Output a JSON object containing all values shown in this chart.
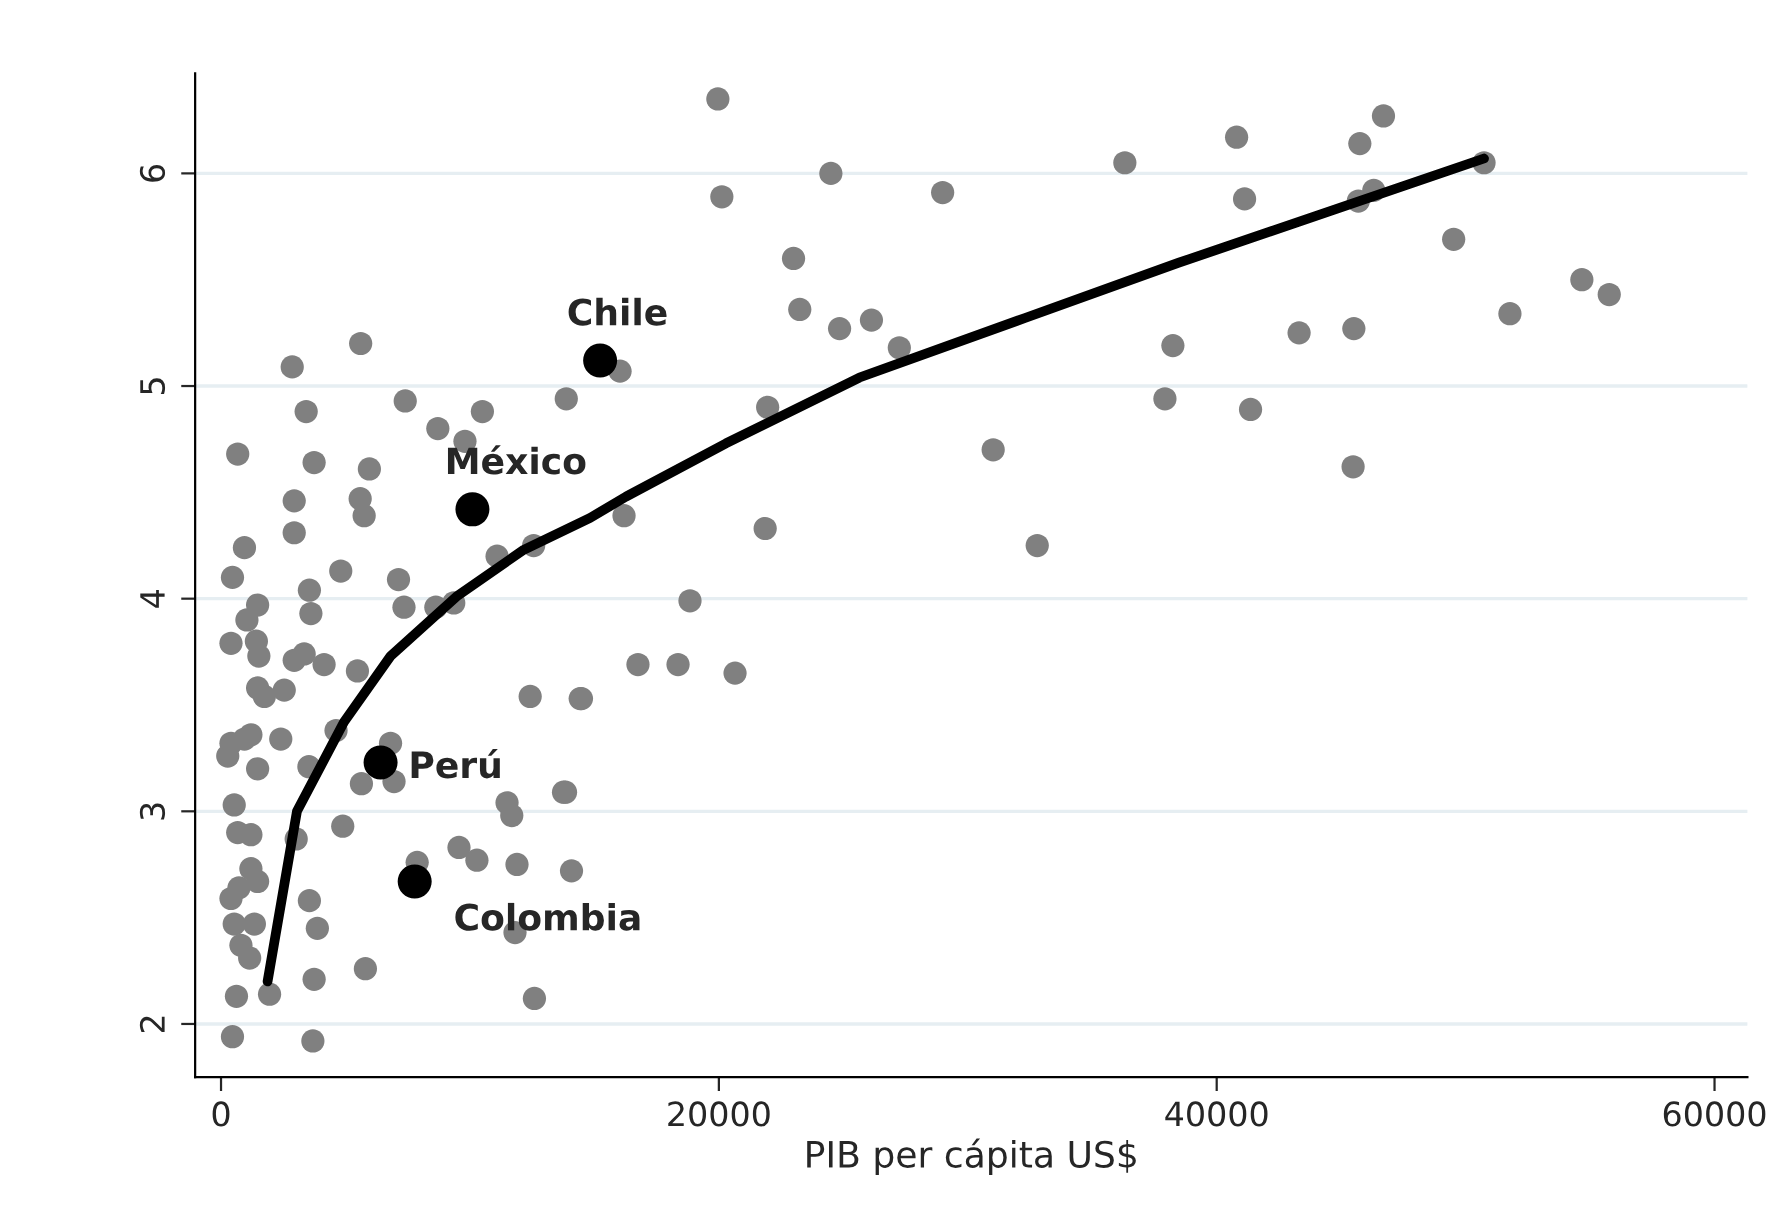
{
  "chart_data": {
    "type": "scatter",
    "xlabel": "PIB per cápita US$",
    "xlim": [
      -1040,
      61320
    ],
    "ylim": [
      1.75,
      6.47
    ],
    "xticks": [
      0,
      20000,
      40000,
      60000
    ],
    "yticks": [
      2,
      3,
      4,
      5,
      6
    ],
    "grid": "y",
    "marker": "circle",
    "legend": false,
    "series": [
      {
        "color": "#808080",
        "x": [
          19960,
          20120,
          24500,
          28990,
          23000,
          23250,
          24850,
          26130,
          27250,
          16030,
          13870,
          21960,
          31020,
          16190,
          21860,
          32790,
          18840,
          16750,
          18360,
          20650,
          14480,
          13840,
          14080,
          36310,
          38240,
          37920,
          40800,
          41120,
          45750,
          46700,
          46310,
          45690,
          50740,
          49520,
          54670,
          55770,
          51780,
          43310,
          45510,
          41360,
          45480,
          5610,
          2860,
          3420,
          7400,
          10500,
          8710,
          9800,
          670,
          3740,
          5960,
          2940,
          5590,
          5750,
          2940,
          940,
          460,
          4810,
          7130,
          11090,
          12560,
          3550,
          1470,
          1040,
          3610,
          7350,
          8630,
          9350,
          400,
          1420,
          1520,
          2940,
          3340,
          4140,
          5480,
          1470,
          1740,
          2540,
          12420,
          14430,
          400,
          940,
          1200,
          270,
          2400,
          1470,
          3530,
          4620,
          6810,
          5640,
          6950,
          530,
          11490,
          11680,
          13760,
          4890,
          670,
          1200,
          3020,
          9560,
          10280,
          11890,
          7880,
          1200,
          1470,
          720,
          400,
          3550,
          3870,
          530,
          1340,
          800,
          1150,
          11810,
          5800,
          620,
          1950,
          3740,
          12590,
          460,
          3690
        ],
        "values": [
          6.35,
          5.89,
          6.0,
          5.91,
          5.6,
          5.36,
          5.27,
          5.31,
          5.18,
          5.07,
          4.94,
          4.9,
          4.7,
          4.39,
          4.33,
          4.25,
          3.99,
          3.69,
          3.69,
          3.65,
          3.53,
          3.09,
          2.72,
          6.05,
          5.19,
          4.94,
          6.17,
          5.88,
          6.14,
          6.27,
          5.92,
          5.87,
          6.05,
          5.69,
          5.5,
          5.43,
          5.34,
          5.25,
          5.27,
          4.89,
          4.62,
          5.2,
          5.09,
          4.88,
          4.93,
          4.88,
          4.8,
          4.74,
          4.68,
          4.64,
          4.61,
          4.46,
          4.47,
          4.39,
          4.31,
          4.24,
          4.1,
          4.13,
          4.09,
          4.2,
          4.25,
          4.04,
          3.97,
          3.9,
          3.93,
          3.96,
          3.96,
          3.98,
          3.79,
          3.8,
          3.73,
          3.71,
          3.74,
          3.69,
          3.66,
          3.58,
          3.54,
          3.57,
          3.54,
          3.53,
          3.32,
          3.34,
          3.36,
          3.26,
          3.34,
          3.2,
          3.21,
          3.38,
          3.32,
          3.13,
          3.14,
          3.03,
          3.04,
          2.98,
          3.09,
          2.93,
          2.9,
          2.89,
          2.87,
          2.83,
          2.77,
          2.75,
          2.76,
          2.73,
          2.67,
          2.64,
          2.59,
          2.58,
          2.45,
          2.47,
          2.47,
          2.37,
          2.31,
          2.43,
          2.26,
          2.13,
          2.14,
          2.21,
          2.12,
          1.94,
          1.92
        ]
      },
      {
        "color": "#000000",
        "x": [
          15230,
          10100,
          6410,
          7780
        ],
        "values": [
          5.12,
          4.42,
          3.23,
          2.67
        ]
      },
      {
        "type": "line",
        "marker": "none",
        "color": "#000000",
        "x": [
          1870,
          3050,
          4940,
          6810,
          9460,
          12160,
          14830,
          16270,
          20280,
          25650,
          32300,
          38480,
          50740
        ],
        "values": [
          2.2,
          3.0,
          3.42,
          3.73,
          4.01,
          4.23,
          4.38,
          4.48,
          4.73,
          5.04,
          5.32,
          5.58,
          6.07
        ]
      }
    ],
    "annotations": [
      {
        "text": "Chile",
        "x": 15230,
        "y": 5.12
      },
      {
        "text": "México",
        "x": 10100,
        "y": 4.42
      },
      {
        "text": "Perú",
        "x": 6410,
        "y": 3.23
      },
      {
        "text": "Colombia",
        "x": 7780,
        "y": 2.67
      }
    ]
  }
}
